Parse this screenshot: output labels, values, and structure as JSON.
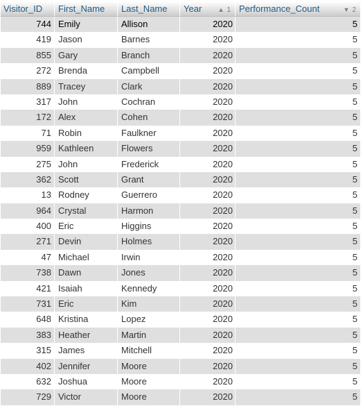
{
  "columns": [
    {
      "label": "Visitor_ID"
    },
    {
      "label": "First_Name"
    },
    {
      "label": "Last_Name"
    },
    {
      "label": "Year",
      "sort_arrow": "▲",
      "sort_order": "1"
    },
    {
      "label": "Performance_Count",
      "sort_arrow": "▼",
      "sort_order": "2"
    }
  ],
  "rows": [
    {
      "id": "744",
      "first": "Emily",
      "last": "Allison",
      "year": "2020",
      "count": "5"
    },
    {
      "id": "419",
      "first": "Jason",
      "last": "Barnes",
      "year": "2020",
      "count": "5"
    },
    {
      "id": "855",
      "first": "Gary",
      "last": "Branch",
      "year": "2020",
      "count": "5"
    },
    {
      "id": "272",
      "first": "Brenda",
      "last": "Campbell",
      "year": "2020",
      "count": "5"
    },
    {
      "id": "889",
      "first": "Tracey",
      "last": "Clark",
      "year": "2020",
      "count": "5"
    },
    {
      "id": "317",
      "first": "John",
      "last": "Cochran",
      "year": "2020",
      "count": "5"
    },
    {
      "id": "172",
      "first": "Alex",
      "last": "Cohen",
      "year": "2020",
      "count": "5"
    },
    {
      "id": "71",
      "first": "Robin",
      "last": "Faulkner",
      "year": "2020",
      "count": "5"
    },
    {
      "id": "959",
      "first": "Kathleen",
      "last": "Flowers",
      "year": "2020",
      "count": "5"
    },
    {
      "id": "275",
      "first": "John",
      "last": "Frederick",
      "year": "2020",
      "count": "5"
    },
    {
      "id": "362",
      "first": "Scott",
      "last": "Grant",
      "year": "2020",
      "count": "5"
    },
    {
      "id": "13",
      "first": "Rodney",
      "last": "Guerrero",
      "year": "2020",
      "count": "5"
    },
    {
      "id": "964",
      "first": "Crystal",
      "last": "Harmon",
      "year": "2020",
      "count": "5"
    },
    {
      "id": "400",
      "first": "Eric",
      "last": "Higgins",
      "year": "2020",
      "count": "5"
    },
    {
      "id": "271",
      "first": "Devin",
      "last": "Holmes",
      "year": "2020",
      "count": "5"
    },
    {
      "id": "47",
      "first": "Michael",
      "last": "Irwin",
      "year": "2020",
      "count": "5"
    },
    {
      "id": "738",
      "first": "Dawn",
      "last": "Jones",
      "year": "2020",
      "count": "5"
    },
    {
      "id": "421",
      "first": "Isaiah",
      "last": "Kennedy",
      "year": "2020",
      "count": "5"
    },
    {
      "id": "731",
      "first": "Eric",
      "last": "Kim",
      "year": "2020",
      "count": "5"
    },
    {
      "id": "648",
      "first": "Kristina",
      "last": "Lopez",
      "year": "2020",
      "count": "5"
    },
    {
      "id": "383",
      "first": "Heather",
      "last": "Martin",
      "year": "2020",
      "count": "5"
    },
    {
      "id": "315",
      "first": "James",
      "last": "Mitchell",
      "year": "2020",
      "count": "5"
    },
    {
      "id": "402",
      "first": "Jennifer",
      "last": "Moore",
      "year": "2020",
      "count": "5"
    },
    {
      "id": "632",
      "first": "Joshua",
      "last": "Moore",
      "year": "2020",
      "count": "5"
    },
    {
      "id": "729",
      "first": "Victor",
      "last": "Moore",
      "year": "2020",
      "count": "5"
    }
  ],
  "colors": {
    "header_link": "#235a81",
    "row_alt": "#dfdfdf",
    "row_base": "#ffffff"
  }
}
